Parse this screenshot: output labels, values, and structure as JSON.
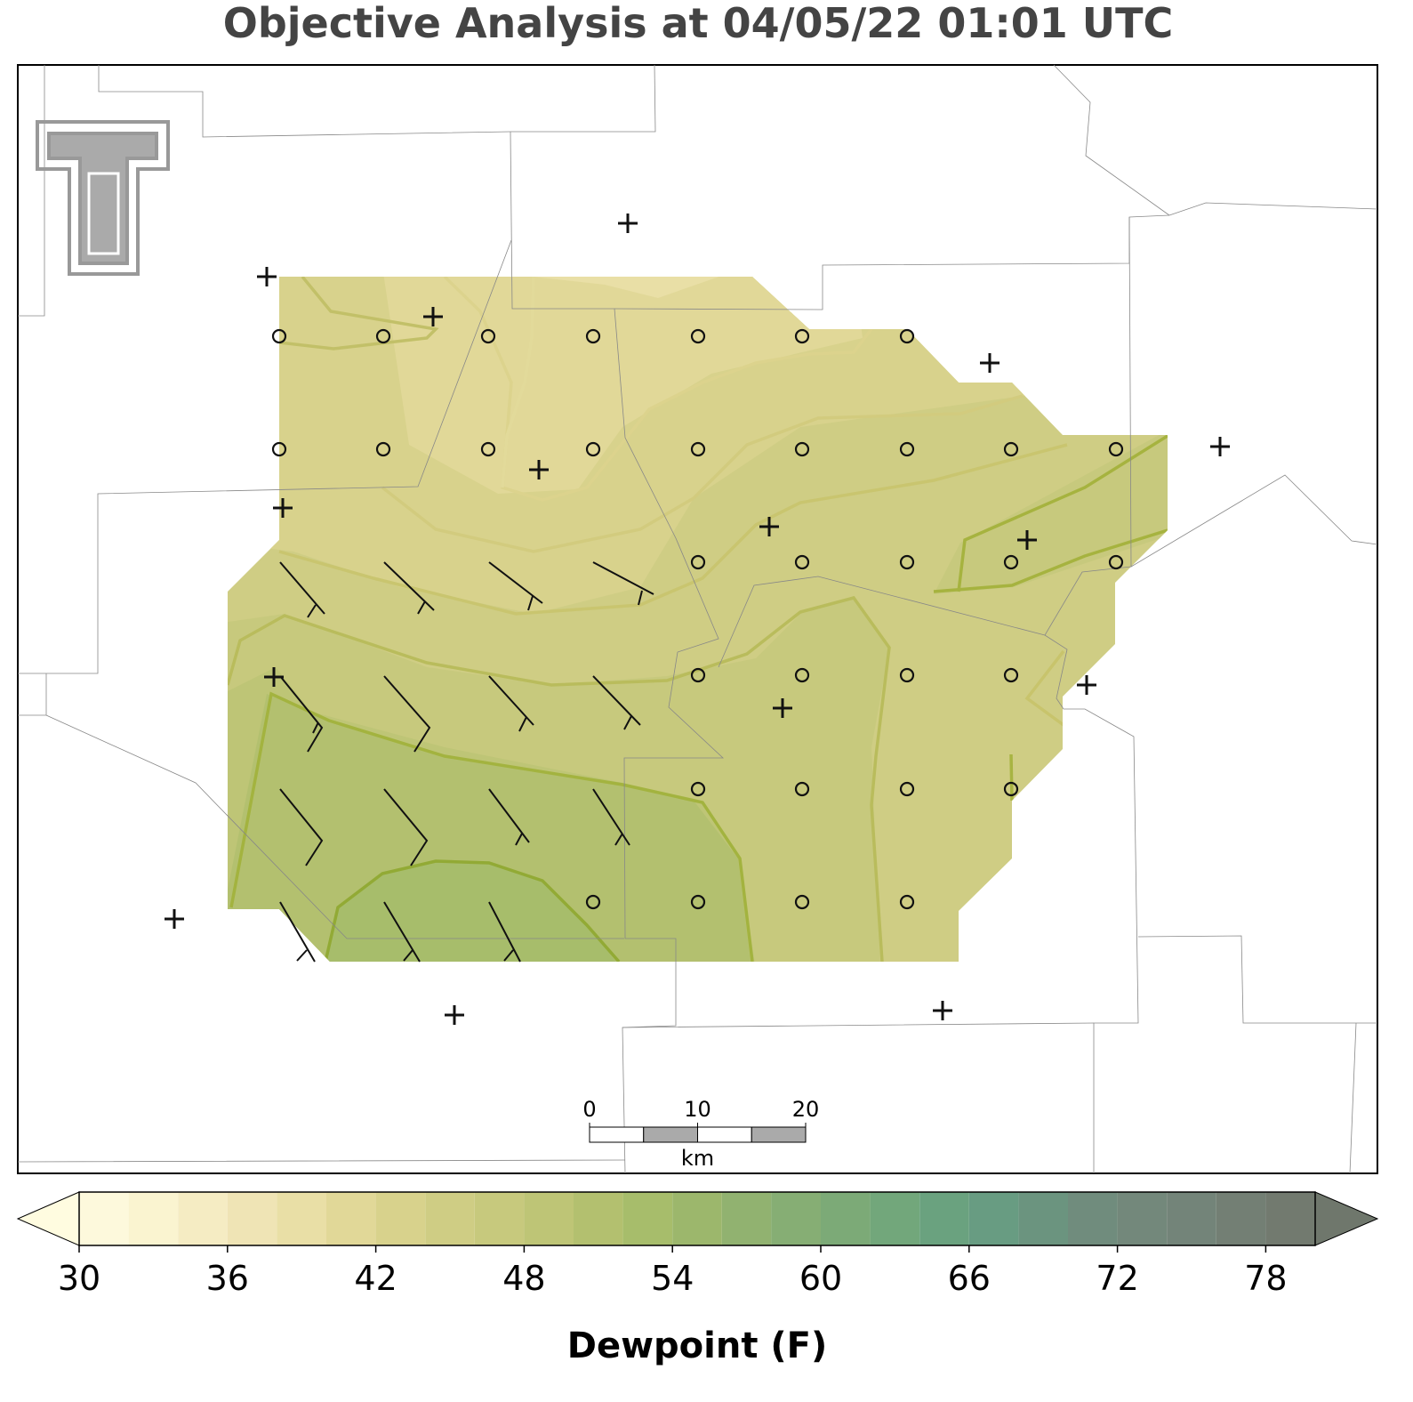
{
  "title": "Objective Analysis at 04/05/22 01:01 UTC",
  "scale_bar": {
    "ticks": [
      0,
      10,
      20
    ],
    "unit": "km"
  },
  "colorbar": {
    "label": "Dewpoint (F)",
    "levels": [
      30,
      32,
      34,
      36,
      38,
      40,
      42,
      44,
      46,
      48,
      50,
      52,
      54,
      56,
      58,
      60,
      62,
      64,
      66,
      68,
      70,
      72,
      74,
      76,
      78,
      80
    ],
    "colors": [
      "#fdf9dc",
      "#faf4d0",
      "#f5ecc3",
      "#efe4b5",
      "#e9dfa6",
      "#e1d898",
      "#d8d28c",
      "#cfcd84",
      "#c7c97d",
      "#bec576",
      "#b3c06f",
      "#a7bd6b",
      "#9cb76c",
      "#91b270",
      "#86ae74",
      "#7caa77",
      "#72a77b",
      "#6aa27f",
      "#689c82",
      "#6b947f",
      "#708c7d",
      "#73887b",
      "#738479",
      "#737f74",
      "#727a6f"
    ],
    "under_color": "#fffce0",
    "over_color": "#6f776c",
    "ticks": [
      30,
      36,
      42,
      48,
      54,
      60,
      66,
      72,
      78
    ]
  }
}
